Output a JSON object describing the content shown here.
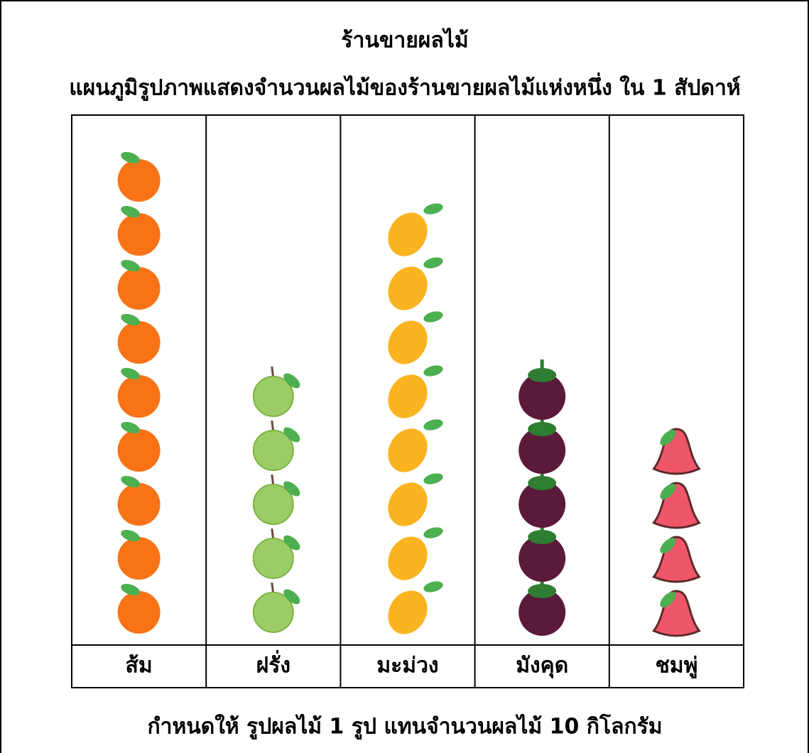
{
  "chart_data": {
    "type": "pictograph",
    "title": "ร้านขายผลไม้",
    "subtitle": "แผนภูมิรูปภาพแสดงจำนวนผลไม้ของร้านขายผลไม้แห่งหนึ่ง ใน 1 สัปดาห์",
    "categories": [
      "ส้ม",
      "ฝรั่ง",
      "มะม่วง",
      "มังคุด",
      "ชมพู่"
    ],
    "values": [
      9,
      5,
      8,
      5,
      4
    ],
    "colors": [
      "#f97316",
      "#9ccc65",
      "#fbb320",
      "#5b1a3a",
      "#f0566a"
    ],
    "key": "กำหนดให้ รูปผลไม้ 1 รูป แทนจำนวนผลไม้ 10 กิโลกรัม"
  }
}
